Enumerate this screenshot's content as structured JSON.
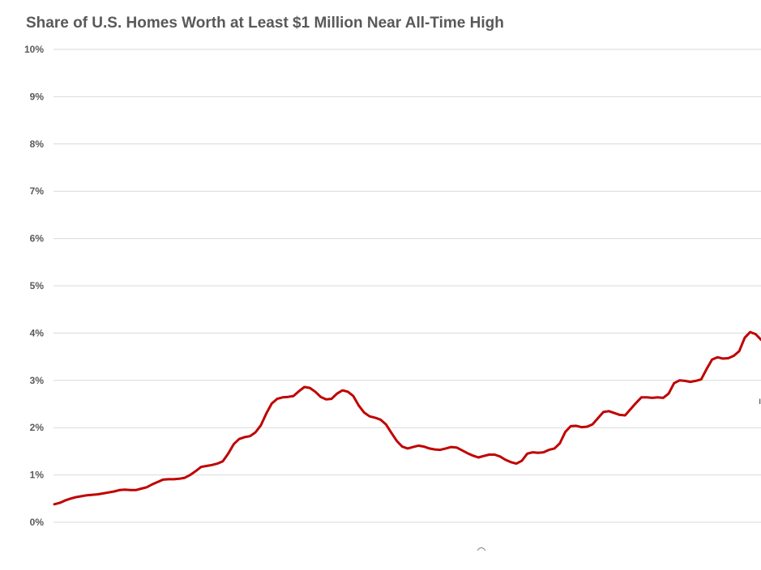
{
  "chart_data": {
    "type": "line",
    "title": "Share of U.S. Homes Worth at Least $1 Million Near All-Time High",
    "xlabel": "",
    "ylabel": "",
    "ylim": [
      0,
      10
    ],
    "yticks": [
      "0%",
      "1%",
      "2%",
      "3%",
      "4%",
      "5%",
      "6%",
      "7%",
      "8%",
      "9%",
      "10%"
    ],
    "grid": true,
    "legend": "none",
    "series": [
      {
        "color": "#c00000",
        "values": [
          0.38,
          0.41,
          0.46,
          0.5,
          0.53,
          0.55,
          0.57,
          0.58,
          0.59,
          0.61,
          0.63,
          0.65,
          0.68,
          0.69,
          0.68,
          0.68,
          0.71,
          0.74,
          0.8,
          0.85,
          0.9,
          0.91,
          0.91,
          0.92,
          0.94,
          1.0,
          1.08,
          1.17,
          1.19,
          1.21,
          1.24,
          1.29,
          1.45,
          1.65,
          1.76,
          1.8,
          1.82,
          1.9,
          2.05,
          2.3,
          2.51,
          2.61,
          2.64,
          2.65,
          2.67,
          2.77,
          2.86,
          2.84,
          2.76,
          2.65,
          2.6,
          2.61,
          2.72,
          2.79,
          2.76,
          2.67,
          2.47,
          2.32,
          2.24,
          2.21,
          2.17,
          2.07,
          1.89,
          1.72,
          1.6,
          1.56,
          1.59,
          1.62,
          1.6,
          1.56,
          1.54,
          1.53,
          1.56,
          1.59,
          1.58,
          1.52,
          1.46,
          1.41,
          1.37,
          1.4,
          1.43,
          1.43,
          1.39,
          1.32,
          1.27,
          1.24,
          1.3,
          1.45,
          1.48,
          1.47,
          1.48,
          1.53,
          1.56,
          1.67,
          1.91,
          2.03,
          2.04,
          2.01,
          2.02,
          2.07,
          2.2,
          2.33,
          2.35,
          2.31,
          2.27,
          2.26,
          2.39,
          2.52,
          2.64,
          2.64,
          2.63,
          2.64,
          2.63,
          2.72,
          2.94,
          3.0,
          2.99,
          2.97,
          2.99,
          3.02,
          3.24,
          3.44,
          3.49,
          3.46,
          3.47,
          3.52,
          3.62,
          3.9,
          4.02,
          3.98,
          3.86
        ]
      }
    ]
  },
  "annotation_glyph": "ı"
}
